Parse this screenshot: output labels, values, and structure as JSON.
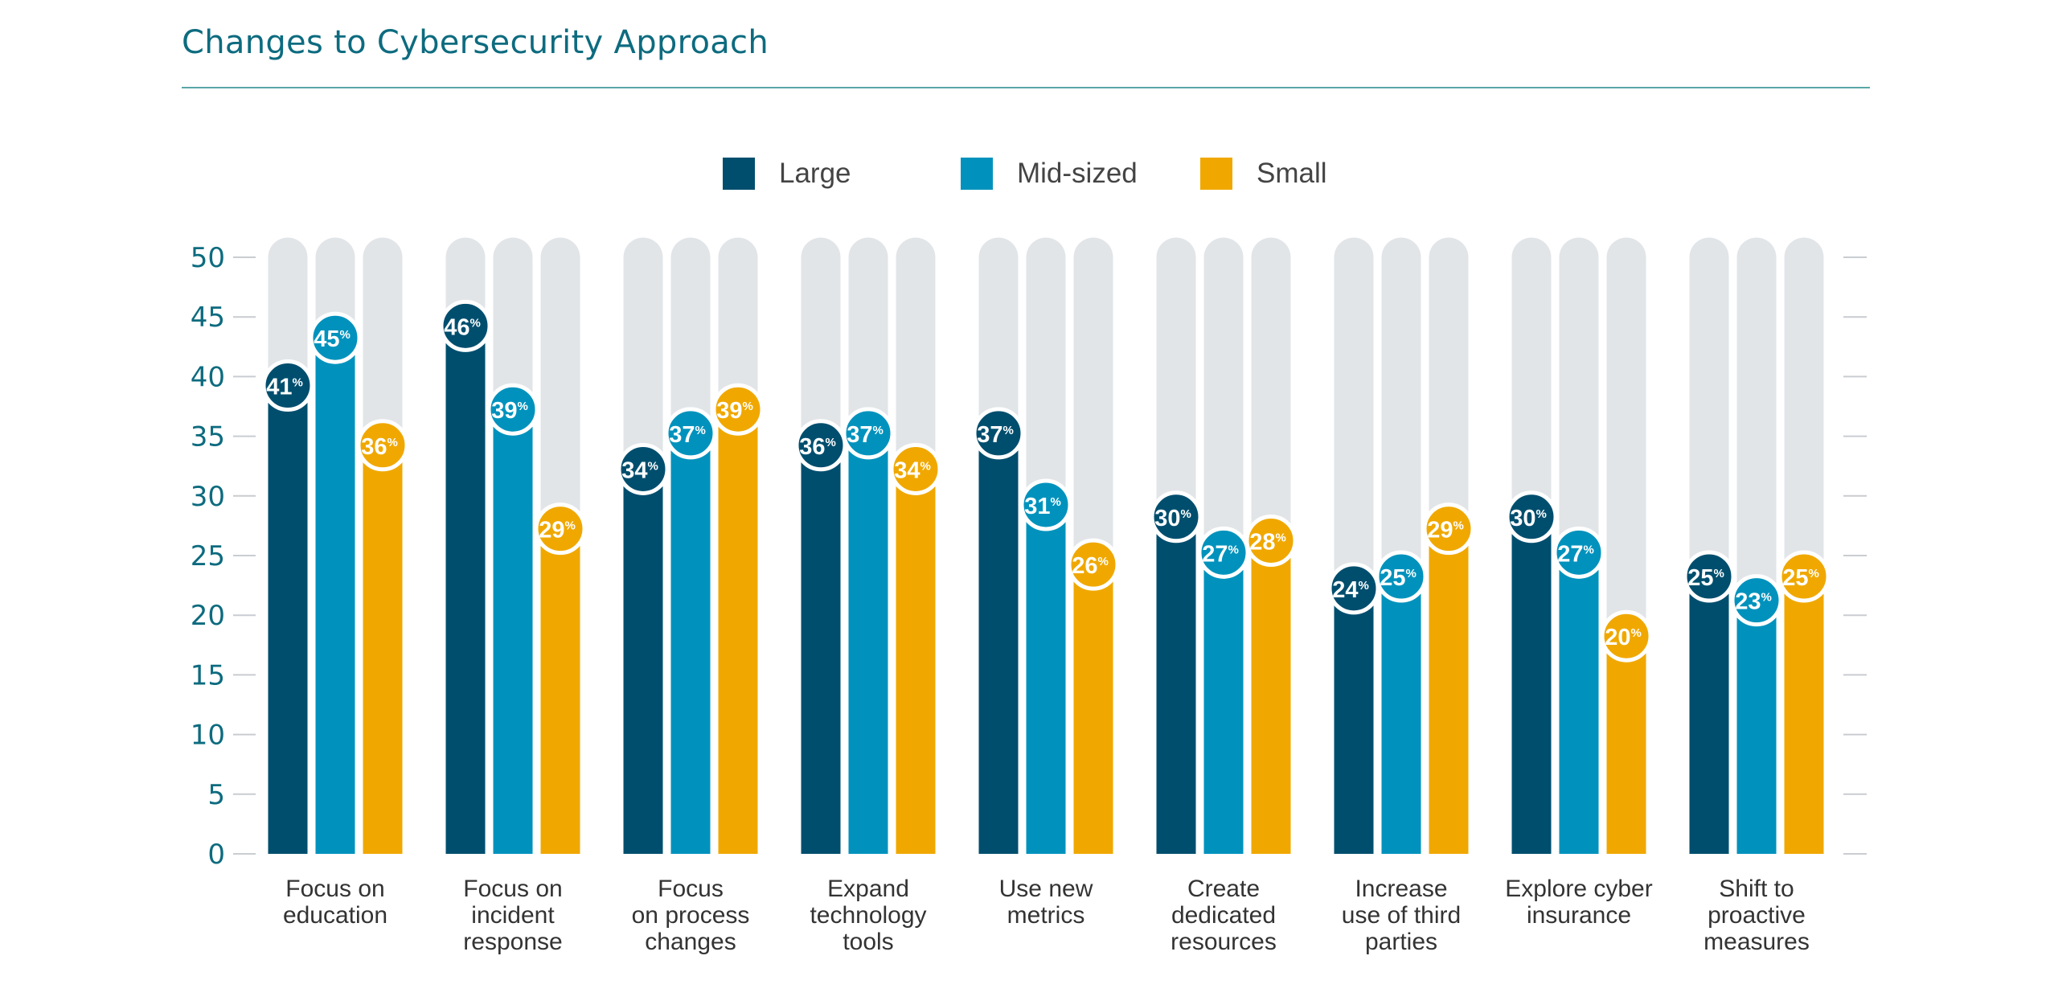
{
  "title": "Changes to Cybersecurity Approach",
  "chart_data": {
    "type": "bar",
    "title": "Changes to Cybersecurity Approach",
    "categories": [
      [
        "Focus on",
        "education"
      ],
      [
        "Focus on",
        "incident",
        "response"
      ],
      [
        "Focus",
        "on process",
        "changes"
      ],
      [
        "Expand",
        "technology",
        "tools"
      ],
      [
        "Use new",
        "metrics"
      ],
      [
        "Create",
        "dedicated",
        "resources"
      ],
      [
        "Increase",
        "use of third",
        "parties"
      ],
      [
        "Explore cyber",
        "insurance"
      ],
      [
        "Shift to",
        "proactive",
        "measures"
      ]
    ],
    "series": [
      {
        "name": "Large",
        "color": "#004e6e",
        "values": [
          41,
          46,
          34,
          36,
          37,
          30,
          24,
          30,
          25
        ]
      },
      {
        "name": "Mid-sized",
        "color": "#0092bd",
        "values": [
          45,
          39,
          37,
          37,
          31,
          27,
          25,
          27,
          23
        ]
      },
      {
        "name": "Small",
        "color": "#f0a800",
        "values": [
          36,
          29,
          39,
          34,
          26,
          28,
          29,
          20,
          25
        ]
      }
    ],
    "value_suffix": "%",
    "ylim": [
      0,
      50
    ],
    "yticks": [
      0,
      5,
      10,
      15,
      20,
      25,
      30,
      35,
      40,
      45,
      50
    ],
    "track_color": "#e2e5e8",
    "legend": "top-center",
    "grid": false
  }
}
